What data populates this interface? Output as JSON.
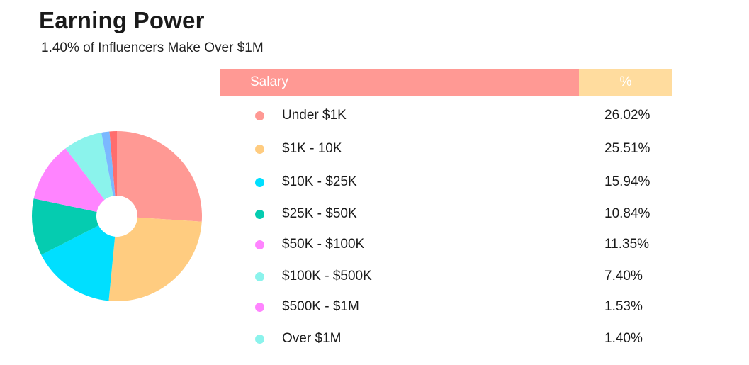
{
  "header": {
    "title": "Earning Power",
    "subtitle": "1.40% of Influencers Make Over $1M"
  },
  "table": {
    "col_salary": "Salary",
    "col_percent": "%"
  },
  "colors": {
    "header_salary_bg": "#ff9994",
    "header_percent_bg": "#ffdc9e"
  },
  "chart_data": {
    "type": "pie",
    "categories": [
      "Under $1K",
      "$1K - 10K",
      "$10K - $25K",
      "$25K - $50K",
      "$50K - $100K",
      "$100K - $500K",
      "$500K - $1M",
      "Over $1M"
    ],
    "values": [
      26.02,
      25.51,
      15.94,
      10.84,
      11.35,
      7.4,
      1.53,
      1.4
    ],
    "value_labels": [
      "26.02%",
      "25.51%",
      "15.94%",
      "10.84%",
      "11.35%",
      "7.40%",
      "1.53%",
      "1.40%"
    ],
    "colors": [
      "#ff9994",
      "#ffcc80",
      "#00dfff",
      "#05ccb0",
      "#ff84ff",
      "#8bf3ec",
      "#7bb8ff",
      "#ff6d6d"
    ],
    "legend_colors": [
      "#ff9994",
      "#ffcc80",
      "#00dfff",
      "#05ccb0",
      "#ff84ff",
      "#8bf3ec",
      "#ff84ff",
      "#8bf3ec"
    ]
  }
}
